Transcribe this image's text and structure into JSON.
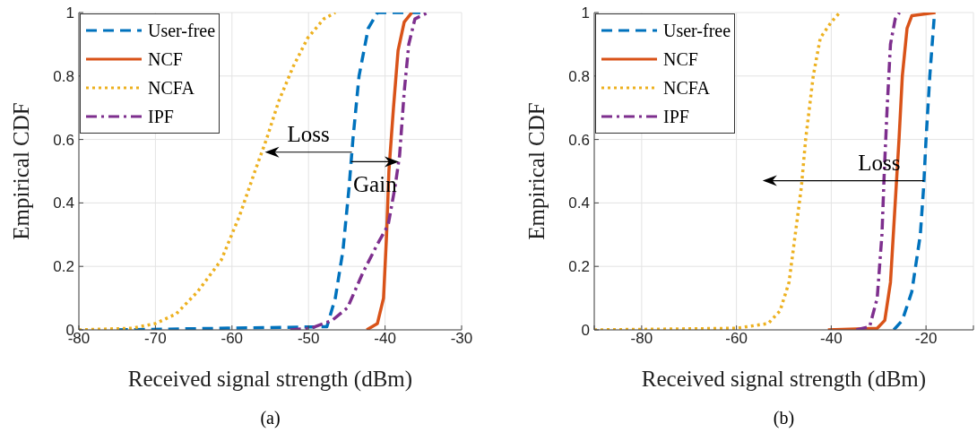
{
  "chart_data": [
    {
      "type": "line",
      "title": "(a)",
      "xlabel": "Received signal strength (dBm)",
      "ylabel": "Empirical CDF",
      "xlim": [
        -80,
        -30
      ],
      "xticks": [
        -80,
        -70,
        -60,
        -50,
        -40,
        -30
      ],
      "ylim": [
        0,
        1
      ],
      "yticks": [
        0,
        0.2,
        0.4,
        0.6,
        0.8,
        1
      ],
      "grid": true,
      "legend": "top left",
      "marker": "none",
      "series": [
        {
          "name": "User-free",
          "color": "#0072bd",
          "line_style": "dashed",
          "x": [
            -75,
            -47.6,
            -46.5,
            -45.5,
            -44.7,
            -44.2,
            -43.4,
            -42.2,
            -41,
            -34.7
          ],
          "values": [
            0,
            0.01,
            0.1,
            0.25,
            0.45,
            0.6,
            0.8,
            0.95,
            1,
            1
          ]
        },
        {
          "name": "NCF",
          "color": "#d95319",
          "line_style": "solid",
          "x": [
            -42.4,
            -41,
            -40.2,
            -39.8,
            -39.5,
            -38.9,
            -38.3,
            -37.5,
            -36.5
          ],
          "values": [
            0,
            0.02,
            0.1,
            0.3,
            0.5,
            0.7,
            0.88,
            0.97,
            1
          ]
        },
        {
          "name": "NCFA",
          "color": "#edb120",
          "line_style": "dotted",
          "x": [
            -80,
            -73.1,
            -70,
            -67.3,
            -64.5,
            -61.4,
            -59,
            -57,
            -55.5,
            -53.9,
            -52,
            -50.1,
            -48,
            -46.5
          ],
          "values": [
            0,
            0.005,
            0.02,
            0.05,
            0.12,
            0.22,
            0.36,
            0.5,
            0.6,
            0.72,
            0.83,
            0.92,
            0.98,
            1
          ]
        },
        {
          "name": "IPF",
          "color": "#7e2f8e",
          "line_style": "dashdot",
          "x": [
            -52.4,
            -49.7,
            -46.9,
            -44.9,
            -42.9,
            -41,
            -39.6,
            -38.7,
            -38.1,
            -37.5,
            -36.9,
            -36.1,
            -34.4
          ],
          "values": [
            0,
            0.005,
            0.03,
            0.07,
            0.18,
            0.27,
            0.33,
            0.45,
            0.55,
            0.75,
            0.9,
            0.98,
            1
          ]
        }
      ],
      "annotations": [
        {
          "text": "Loss",
          "x": -55.7,
          "y": 0.56
        },
        {
          "text": "Gain",
          "x": -38.2,
          "y": 0.53
        }
      ]
    },
    {
      "type": "line",
      "title": "(b)",
      "xlabel": "Received signal strength (dBm)",
      "ylabel": "Empirical CDF",
      "xlim": [
        -90,
        -10
      ],
      "xticks": [
        {
          "value": -90,
          "label": null
        },
        -80,
        -60,
        -40,
        -20,
        {
          "value": -10,
          "label": null
        }
      ],
      "ylim": [
        0,
        1
      ],
      "yticks": [
        0,
        0.2,
        0.4,
        0.6,
        0.8,
        1
      ],
      "grid": true,
      "legend": "top left",
      "marker": "none",
      "series": [
        {
          "name": "User-free",
          "color": "#0072bd",
          "line_style": "dashed",
          "x": [
            -26.8,
            -25,
            -23,
            -21.2,
            -20.5,
            -20,
            -19.2,
            -18.3
          ],
          "values": [
            0,
            0.03,
            0.12,
            0.3,
            0.45,
            0.6,
            0.8,
            0.98
          ]
        },
        {
          "name": "NCF",
          "color": "#d95319",
          "line_style": "solid",
          "x": [
            -40.7,
            -30.3,
            -28.7,
            -27.5,
            -26.5,
            -25.7,
            -25,
            -24,
            -23,
            -18
          ],
          "values": [
            0,
            0.005,
            0.03,
            0.15,
            0.4,
            0.6,
            0.8,
            0.95,
            0.99,
            1
          ]
        },
        {
          "name": "NCFA",
          "color": "#edb120",
          "line_style": "dotted",
          "x": [
            -90,
            -60,
            -53.3,
            -50.8,
            -48.9,
            -47.6,
            -46.3,
            -45.4,
            -43.8,
            -42.3,
            -40,
            -38.2
          ],
          "values": [
            0,
            0.005,
            0.02,
            0.06,
            0.15,
            0.3,
            0.45,
            0.6,
            0.8,
            0.92,
            0.97,
            1
          ]
        },
        {
          "name": "IPF",
          "color": "#7e2f8e",
          "line_style": "dashdot",
          "x": [
            -34.7,
            -31.9,
            -30.3,
            -29.3,
            -28.8,
            -28.2,
            -27.5,
            -26.5,
            -25.6
          ],
          "values": [
            0,
            0.01,
            0.1,
            0.3,
            0.5,
            0.7,
            0.9,
            0.98,
            1
          ]
        }
      ],
      "annotations": [
        {
          "text": "Loss",
          "x": -20.8,
          "y": 0.47
        }
      ]
    }
  ]
}
